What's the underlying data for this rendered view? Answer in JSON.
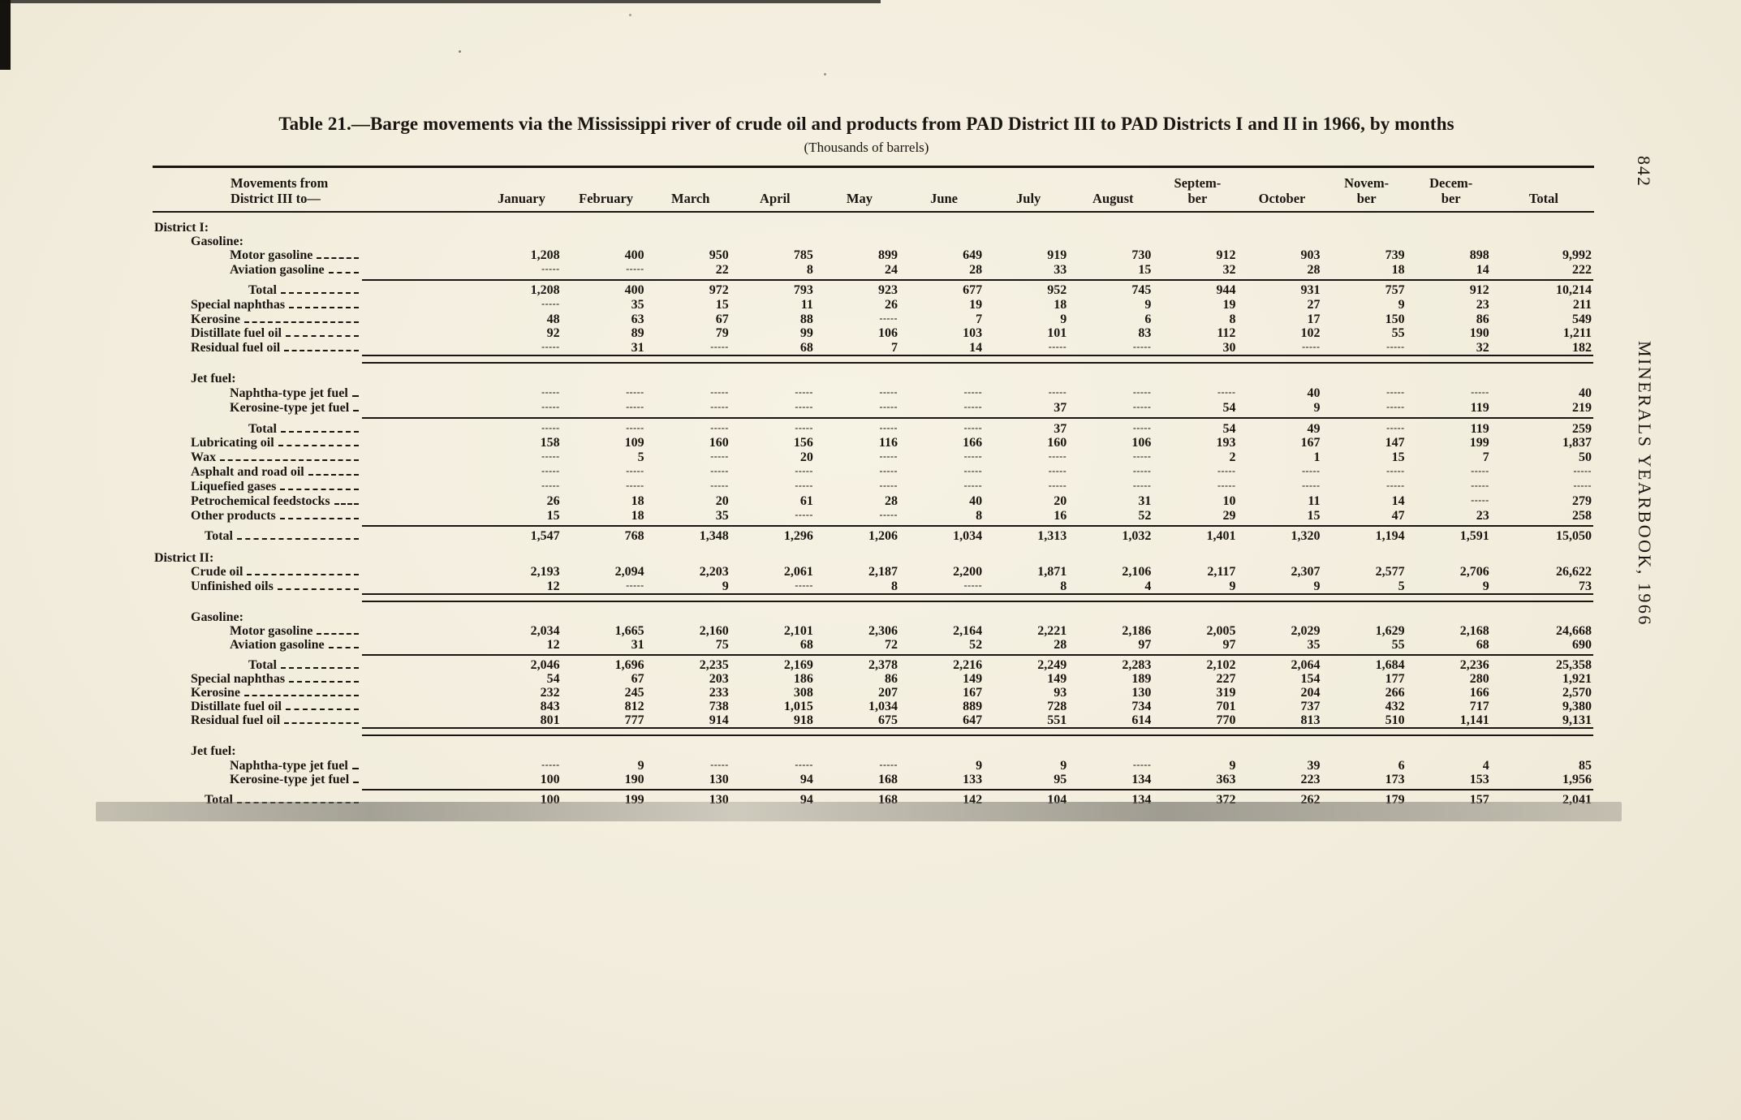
{
  "page": {
    "page_number": "842",
    "side_label": "MINERALS YEARBOOK, 1966"
  },
  "title": {
    "text": "Table 21.—Barge movements via the Mississippi river of crude oil and products from PAD District III to PAD Districts I and II in 1966, by months",
    "subtitle": "(Thousands of barrels)"
  },
  "table": {
    "stub_header": "Movements from\nDistrict III to—",
    "columns": [
      "January",
      "February",
      "March",
      "April",
      "May",
      "June",
      "July",
      "August",
      "Septem-\nber",
      "October",
      "Novem-\nber",
      "Decem-\nber",
      "Total"
    ],
    "empty_cell_marker": "-----",
    "rows": [
      {
        "type": "spacer"
      },
      {
        "type": "section",
        "label": "District I:",
        "indent": 0
      },
      {
        "type": "section",
        "label": "Gasoline:",
        "indent": 1
      },
      {
        "type": "data",
        "label": "Motor gasoline",
        "indent": 2,
        "values": [
          "1,208",
          "400",
          "950",
          "785",
          "899",
          "649",
          "919",
          "730",
          "912",
          "903",
          "739",
          "898",
          "9,992"
        ]
      },
      {
        "type": "data",
        "label": "Aviation gasoline",
        "indent": 2,
        "values": [
          "",
          "",
          "22",
          "8",
          "24",
          "28",
          "33",
          "15",
          "32",
          "28",
          "18",
          "14",
          "222"
        ]
      },
      {
        "type": "rule",
        "style": "single"
      },
      {
        "type": "data",
        "label": "Total",
        "indent": 3,
        "values": [
          "1,208",
          "400",
          "972",
          "793",
          "923",
          "677",
          "952",
          "745",
          "944",
          "931",
          "757",
          "912",
          "10,214"
        ]
      },
      {
        "type": "data",
        "label": "Special naphthas",
        "indent": 1,
        "values": [
          "",
          "35",
          "15",
          "11",
          "26",
          "19",
          "18",
          "9",
          "19",
          "27",
          "9",
          "23",
          "211"
        ]
      },
      {
        "type": "data",
        "label": "Kerosine",
        "indent": 1,
        "values": [
          "48",
          "63",
          "67",
          "88",
          "",
          "7",
          "9",
          "6",
          "8",
          "17",
          "150",
          "86",
          "549"
        ]
      },
      {
        "type": "data",
        "label": "Distillate fuel oil",
        "indent": 1,
        "values": [
          "92",
          "89",
          "79",
          "99",
          "106",
          "103",
          "101",
          "83",
          "112",
          "102",
          "55",
          "190",
          "1,211"
        ]
      },
      {
        "type": "data",
        "label": "Residual fuel oil",
        "indent": 1,
        "values": [
          "",
          "31",
          "",
          "68",
          "7",
          "14",
          "",
          "",
          "30",
          "",
          "",
          "32",
          "182"
        ]
      },
      {
        "type": "rule",
        "style": "double"
      },
      {
        "type": "spacer"
      },
      {
        "type": "section",
        "label": "Jet fuel:",
        "indent": 1
      },
      {
        "type": "data",
        "label": "Naphtha-type jet fuel",
        "indent": 2,
        "values": [
          "",
          "",
          "",
          "",
          "",
          "",
          "",
          "",
          "",
          "40",
          "",
          "",
          "40"
        ]
      },
      {
        "type": "data",
        "label": "Kerosine-type jet fuel",
        "indent": 2,
        "values": [
          "",
          "",
          "",
          "",
          "",
          "",
          "37",
          "",
          "54",
          "9",
          "",
          "119",
          "219"
        ]
      },
      {
        "type": "rule",
        "style": "single"
      },
      {
        "type": "data",
        "label": "Total",
        "indent": 3,
        "values": [
          "",
          "",
          "",
          "",
          "",
          "",
          "37",
          "",
          "54",
          "49",
          "",
          "119",
          "259"
        ]
      },
      {
        "type": "data",
        "label": "Lubricating oil",
        "indent": 1,
        "values": [
          "158",
          "109",
          "160",
          "156",
          "116",
          "166",
          "160",
          "106",
          "193",
          "167",
          "147",
          "199",
          "1,837"
        ]
      },
      {
        "type": "data",
        "label": "Wax",
        "indent": 1,
        "values": [
          "",
          "5",
          "",
          "20",
          "",
          "",
          "",
          "",
          "2",
          "1",
          "15",
          "7",
          "50"
        ]
      },
      {
        "type": "data",
        "label": "Asphalt and road oil",
        "indent": 1,
        "values": [
          "",
          "",
          "",
          "",
          "",
          "",
          "",
          "",
          "",
          "",
          "",
          "",
          ""
        ]
      },
      {
        "type": "data",
        "label": "Liquefied gases",
        "indent": 1,
        "values": [
          "",
          "",
          "",
          "",
          "",
          "",
          "",
          "",
          "",
          "",
          "",
          "",
          ""
        ]
      },
      {
        "type": "data",
        "label": "Petrochemical feedstocks",
        "indent": 1,
        "values": [
          "26",
          "18",
          "20",
          "61",
          "28",
          "40",
          "20",
          "31",
          "10",
          "11",
          "14",
          "",
          "279"
        ]
      },
      {
        "type": "data",
        "label": "Other products",
        "indent": 1,
        "values": [
          "15",
          "18",
          "35",
          "",
          "",
          "8",
          "16",
          "52",
          "29",
          "15",
          "47",
          "23",
          "258"
        ]
      },
      {
        "type": "rule",
        "style": "single"
      },
      {
        "type": "data",
        "label": "Total",
        "indent": 4,
        "values": [
          "1,547",
          "768",
          "1,348",
          "1,296",
          "1,206",
          "1,034",
          "1,313",
          "1,032",
          "1,401",
          "1,320",
          "1,194",
          "1,591",
          "15,050"
        ]
      },
      {
        "type": "spacer"
      },
      {
        "type": "section",
        "label": "District II:",
        "indent": 0
      },
      {
        "type": "data",
        "label": "Crude oil",
        "indent": 1,
        "values": [
          "2,193",
          "2,094",
          "2,203",
          "2,061",
          "2,187",
          "2,200",
          "1,871",
          "2,106",
          "2,117",
          "2,307",
          "2,577",
          "2,706",
          "26,622"
        ]
      },
      {
        "type": "data",
        "label": "Unfinished oils",
        "indent": 1,
        "values": [
          "12",
          "",
          "9",
          "",
          "8",
          "",
          "8",
          "4",
          "9",
          "9",
          "5",
          "9",
          "73"
        ]
      },
      {
        "type": "rule",
        "style": "double"
      },
      {
        "type": "spacer"
      },
      {
        "type": "section",
        "label": "Gasoline:",
        "indent": 1
      },
      {
        "type": "data",
        "label": "Motor gasoline",
        "indent": 2,
        "values": [
          "2,034",
          "1,665",
          "2,160",
          "2,101",
          "2,306",
          "2,164",
          "2,221",
          "2,186",
          "2,005",
          "2,029",
          "1,629",
          "2,168",
          "24,668"
        ]
      },
      {
        "type": "data",
        "label": "Aviation gasoline",
        "indent": 2,
        "values": [
          "12",
          "31",
          "75",
          "68",
          "72",
          "52",
          "28",
          "97",
          "97",
          "35",
          "55",
          "68",
          "690"
        ]
      },
      {
        "type": "rule",
        "style": "single"
      },
      {
        "type": "data",
        "label": "Total",
        "indent": 3,
        "values": [
          "2,046",
          "1,696",
          "2,235",
          "2,169",
          "2,378",
          "2,216",
          "2,249",
          "2,283",
          "2,102",
          "2,064",
          "1,684",
          "2,236",
          "25,358"
        ]
      },
      {
        "type": "data",
        "label": "Special naphthas",
        "indent": 1,
        "values": [
          "54",
          "67",
          "203",
          "186",
          "86",
          "149",
          "149",
          "189",
          "227",
          "154",
          "177",
          "280",
          "1,921"
        ]
      },
      {
        "type": "data",
        "label": "Kerosine",
        "indent": 1,
        "values": [
          "232",
          "245",
          "233",
          "308",
          "207",
          "167",
          "93",
          "130",
          "319",
          "204",
          "266",
          "166",
          "2,570"
        ]
      },
      {
        "type": "data",
        "label": "Distillate fuel oil",
        "indent": 1,
        "values": [
          "843",
          "812",
          "738",
          "1,015",
          "1,034",
          "889",
          "728",
          "734",
          "701",
          "737",
          "432",
          "717",
          "9,380"
        ]
      },
      {
        "type": "data",
        "label": "Residual fuel oil",
        "indent": 1,
        "values": [
          "801",
          "777",
          "914",
          "918",
          "675",
          "647",
          "551",
          "614",
          "770",
          "813",
          "510",
          "1,141",
          "9,131"
        ]
      },
      {
        "type": "rule",
        "style": "double"
      },
      {
        "type": "spacer"
      },
      {
        "type": "section",
        "label": "Jet fuel:",
        "indent": 1
      },
      {
        "type": "data",
        "label": "Naphtha-type jet fuel",
        "indent": 2,
        "values": [
          "",
          "9",
          "",
          "",
          "",
          "9",
          "9",
          "",
          "9",
          "39",
          "6",
          "4",
          "85"
        ]
      },
      {
        "type": "data",
        "label": "Kerosine-type jet fuel",
        "indent": 2,
        "values": [
          "100",
          "190",
          "130",
          "94",
          "168",
          "133",
          "95",
          "134",
          "363",
          "223",
          "173",
          "153",
          "1,956"
        ]
      },
      {
        "type": "rule",
        "style": "single"
      },
      {
        "type": "data",
        "label": "Total",
        "indent": 4,
        "values": [
          "100",
          "199",
          "130",
          "94",
          "168",
          "142",
          "104",
          "134",
          "372",
          "262",
          "179",
          "157",
          "2,041"
        ]
      }
    ]
  }
}
